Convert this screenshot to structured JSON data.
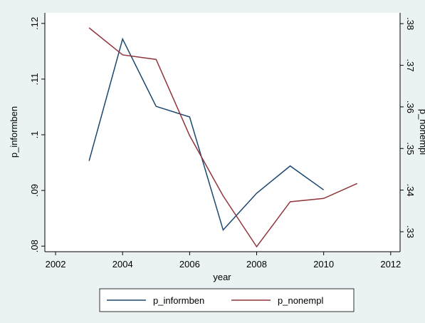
{
  "chart_data": {
    "type": "line",
    "x_label": "year",
    "y_label": "p_informben",
    "y2_label": "p_nonempl",
    "x": [
      2003,
      2004,
      2005,
      2006,
      2007,
      2008,
      2009,
      2010,
      2011
    ],
    "series": [
      {
        "name": "p_informben",
        "color": "#1a476f",
        "values": [
          0.0953,
          0.1172,
          0.1051,
          0.1032,
          0.0829,
          0.0895,
          0.0944,
          0.0901,
          null
        ]
      },
      {
        "name": "p_nonempl",
        "color": "#90353b",
        "axis": "y2",
        "values": [
          0.379,
          0.3725,
          0.3714,
          0.3531,
          0.3386,
          0.3264,
          0.3372,
          0.338,
          0.3416
        ]
      }
    ],
    "xlim": [
      2001.68,
      2012.28
    ],
    "xticks": [
      2002,
      2004,
      2006,
      2008,
      2010,
      2012
    ],
    "ylim": [
      0.079,
      0.1219
    ],
    "yticks": [
      {
        "value": 0.08,
        "label": ".08"
      },
      {
        "value": 0.09,
        "label": ".09"
      },
      {
        "value": 0.1,
        "label": ".1"
      },
      {
        "value": 0.11,
        "label": ".11"
      },
      {
        "value": 0.12,
        "label": ".12"
      }
    ],
    "y2lim": [
      0.3252,
      0.3826
    ],
    "y2ticks": [
      {
        "value": 0.33,
        "label": ".33"
      },
      {
        "value": 0.34,
        "label": ".34"
      },
      {
        "value": 0.35,
        "label": ".35"
      },
      {
        "value": 0.36,
        "label": ".36"
      },
      {
        "value": 0.37,
        "label": ".37"
      },
      {
        "value": 0.38,
        "label": ".38"
      }
    ],
    "grid": false,
    "legend": "bottom"
  }
}
